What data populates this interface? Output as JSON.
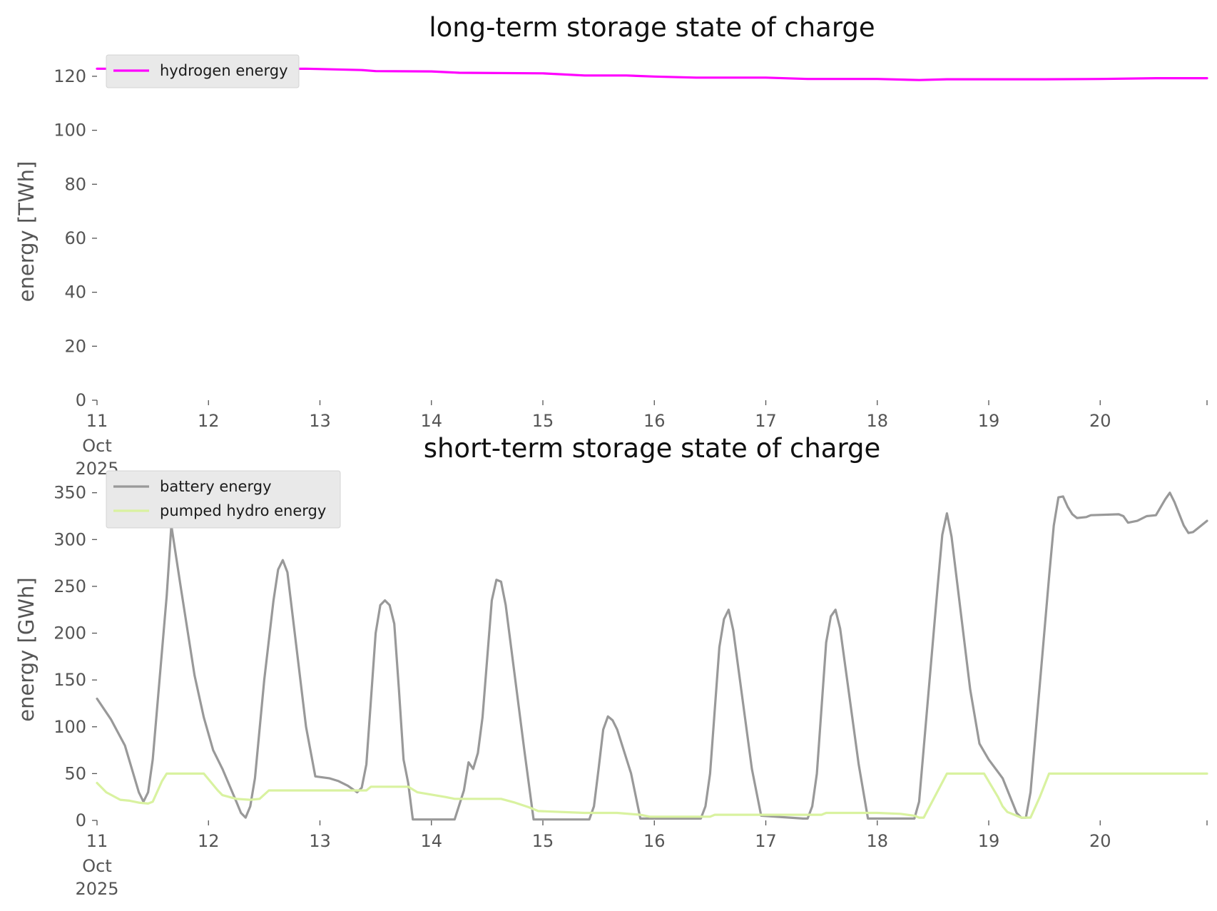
{
  "chart_data": [
    {
      "type": "line",
      "title": "long-term storage state of charge",
      "ylabel": "energy [TWh]",
      "xlabel": "",
      "ylim": [
        0,
        125
      ],
      "xlim": [
        "2025-10-11 00:00",
        "2025-10-20 23:00"
      ],
      "yticks": [
        0,
        20,
        40,
        60,
        80,
        100,
        120
      ],
      "xticks": [
        {
          "x": "2025-10-11",
          "label": "11",
          "sublabel": "Oct\n2025"
        },
        {
          "x": "2025-10-12",
          "label": "12"
        },
        {
          "x": "2025-10-13",
          "label": "13"
        },
        {
          "x": "2025-10-14",
          "label": "14"
        },
        {
          "x": "2025-10-15",
          "label": "15"
        },
        {
          "x": "2025-10-16",
          "label": "16"
        },
        {
          "x": "2025-10-17",
          "label": "17"
        },
        {
          "x": "2025-10-18",
          "label": "18"
        },
        {
          "x": "2025-10-19",
          "label": "19"
        },
        {
          "x": "2025-10-20",
          "label": "20"
        }
      ],
      "grid": false,
      "legend": "top-left",
      "series": [
        {
          "name": "hydrogen energy",
          "color": "#ff00ff",
          "points": [
            [
              "2025-10-11 00:00",
              122.8
            ],
            [
              "2025-10-12 00:00",
              122.7
            ],
            [
              "2025-10-12 21:00",
              122.8
            ],
            [
              "2025-10-13 09:00",
              122.3
            ],
            [
              "2025-10-13 12:00",
              121.9
            ],
            [
              "2025-10-14 00:00",
              121.8
            ],
            [
              "2025-10-14 06:00",
              121.3
            ],
            [
              "2025-10-15 00:00",
              121.1
            ],
            [
              "2025-10-15 09:00",
              120.3
            ],
            [
              "2025-10-15 18:00",
              120.3
            ],
            [
              "2025-10-16 00:00",
              119.9
            ],
            [
              "2025-10-16 09:00",
              119.5
            ],
            [
              "2025-10-17 00:00",
              119.5
            ],
            [
              "2025-10-17 09:00",
              119.0
            ],
            [
              "2025-10-18 00:00",
              119.0
            ],
            [
              "2025-10-18 09:00",
              118.6
            ],
            [
              "2025-10-18 15:00",
              118.9
            ],
            [
              "2025-10-19 12:00",
              118.9
            ],
            [
              "2025-10-20 00:00",
              119.0
            ],
            [
              "2025-10-20 12:00",
              119.3
            ],
            [
              "2025-10-20 23:00",
              119.3
            ]
          ]
        }
      ]
    },
    {
      "type": "line",
      "title": "short-term storage state of charge",
      "ylabel": "energy [GWh]",
      "xlabel": "",
      "ylim": [
        0,
        365
      ],
      "xlim": [
        "2025-10-11 00:00",
        "2025-10-20 23:00"
      ],
      "yticks": [
        0,
        50,
        100,
        150,
        200,
        250,
        300,
        350
      ],
      "xticks": [
        {
          "x": "2025-10-11",
          "label": "11",
          "sublabel": "Oct\n2025"
        },
        {
          "x": "2025-10-12",
          "label": "12"
        },
        {
          "x": "2025-10-13",
          "label": "13"
        },
        {
          "x": "2025-10-14",
          "label": "14"
        },
        {
          "x": "2025-10-15",
          "label": "15"
        },
        {
          "x": "2025-10-16",
          "label": "16"
        },
        {
          "x": "2025-10-17",
          "label": "17"
        },
        {
          "x": "2025-10-18",
          "label": "18"
        },
        {
          "x": "2025-10-19",
          "label": "19"
        },
        {
          "x": "2025-10-20",
          "label": "20"
        }
      ],
      "grid": false,
      "legend": "top-left",
      "series": [
        {
          "name": "battery energy",
          "color": "#999999",
          "points": [
            [
              "2025-10-11 00:00",
              130
            ],
            [
              "2025-10-11 03:00",
              108
            ],
            [
              "2025-10-11 06:00",
              80
            ],
            [
              "2025-10-11 09:00",
              30
            ],
            [
              "2025-10-11 10:00",
              20
            ],
            [
              "2025-10-11 11:00",
              30
            ],
            [
              "2025-10-11 12:00",
              65
            ],
            [
              "2025-10-11 15:00",
              240
            ],
            [
              "2025-10-11 16:00",
              315
            ],
            [
              "2025-10-11 18:00",
              250
            ],
            [
              "2025-10-11 21:00",
              155
            ],
            [
              "2025-10-11 23:00",
              110
            ],
            [
              "2025-10-12 01:00",
              75
            ],
            [
              "2025-10-12 03:00",
              55
            ],
            [
              "2025-10-12 06:00",
              20
            ],
            [
              "2025-10-12 07:00",
              8
            ],
            [
              "2025-10-12 08:00",
              3
            ],
            [
              "2025-10-12 09:00",
              15
            ],
            [
              "2025-10-12 10:00",
              45
            ],
            [
              "2025-10-12 12:00",
              150
            ],
            [
              "2025-10-12 14:00",
              235
            ],
            [
              "2025-10-12 15:00",
              268
            ],
            [
              "2025-10-12 16:00",
              278
            ],
            [
              "2025-10-12 17:00",
              265
            ],
            [
              "2025-10-12 21:00",
              100
            ],
            [
              "2025-10-12 23:00",
              47
            ],
            [
              "2025-10-13 02:00",
              45
            ],
            [
              "2025-10-13 04:00",
              42
            ],
            [
              "2025-10-13 06:00",
              37
            ],
            [
              "2025-10-13 08:00",
              30
            ],
            [
              "2025-10-13 09:00",
              35
            ],
            [
              "2025-10-13 10:00",
              60
            ],
            [
              "2025-10-13 12:00",
              200
            ],
            [
              "2025-10-13 13:00",
              230
            ],
            [
              "2025-10-13 14:00",
              235
            ],
            [
              "2025-10-13 15:00",
              230
            ],
            [
              "2025-10-13 16:00",
              210
            ],
            [
              "2025-10-13 17:00",
              140
            ],
            [
              "2025-10-13 18:00",
              65
            ],
            [
              "2025-10-13 19:00",
              40
            ],
            [
              "2025-10-13 20:00",
              1
            ],
            [
              "2025-10-14 05:00",
              1
            ],
            [
              "2025-10-14 07:00",
              32
            ],
            [
              "2025-10-14 08:00",
              62
            ],
            [
              "2025-10-14 09:00",
              55
            ],
            [
              "2025-10-14 10:00",
              72
            ],
            [
              "2025-10-14 11:00",
              110
            ],
            [
              "2025-10-14 13:00",
              235
            ],
            [
              "2025-10-14 14:00",
              257
            ],
            [
              "2025-10-14 15:00",
              255
            ],
            [
              "2025-10-14 16:00",
              230
            ],
            [
              "2025-10-14 20:00",
              75
            ],
            [
              "2025-10-14 22:00",
              1
            ],
            [
              "2025-10-15 10:00",
              1
            ],
            [
              "2025-10-15 11:00",
              15
            ],
            [
              "2025-10-15 12:00",
              55
            ],
            [
              "2025-10-15 13:00",
              97
            ],
            [
              "2025-10-15 14:00",
              111
            ],
            [
              "2025-10-15 15:00",
              107
            ],
            [
              "2025-10-15 16:00",
              97
            ],
            [
              "2025-10-15 19:00",
              50
            ],
            [
              "2025-10-15 21:00",
              2
            ],
            [
              "2025-10-16 10:00",
              2
            ],
            [
              "2025-10-16 11:00",
              15
            ],
            [
              "2025-10-16 12:00",
              50
            ],
            [
              "2025-10-16 14:00",
              185
            ],
            [
              "2025-10-16 15:00",
              215
            ],
            [
              "2025-10-16 16:00",
              225
            ],
            [
              "2025-10-16 17:00",
              203
            ],
            [
              "2025-10-16 21:00",
              55
            ],
            [
              "2025-10-16 23:00",
              5
            ],
            [
              "2025-10-17 08:00",
              2
            ],
            [
              "2025-10-17 09:00",
              2
            ],
            [
              "2025-10-17 10:00",
              15
            ],
            [
              "2025-10-17 11:00",
              50
            ],
            [
              "2025-10-17 13:00",
              190
            ],
            [
              "2025-10-17 14:00",
              218
            ],
            [
              "2025-10-17 15:00",
              225
            ],
            [
              "2025-10-17 16:00",
              205
            ],
            [
              "2025-10-17 20:00",
              60
            ],
            [
              "2025-10-17 22:00",
              2
            ],
            [
              "2025-10-18 08:00",
              2
            ],
            [
              "2025-10-18 09:00",
              20
            ],
            [
              "2025-10-18 13:00",
              250
            ],
            [
              "2025-10-18 14:00",
              305
            ],
            [
              "2025-10-18 15:00",
              328
            ],
            [
              "2025-10-18 16:00",
              303
            ],
            [
              "2025-10-18 20:00",
              140
            ],
            [
              "2025-10-18 22:00",
              82
            ],
            [
              "2025-10-19 00:00",
              65
            ],
            [
              "2025-10-19 03:00",
              45
            ],
            [
              "2025-10-19 06:00",
              8
            ],
            [
              "2025-10-19 07:00",
              3
            ],
            [
              "2025-10-19 08:00",
              3
            ],
            [
              "2025-10-19 09:00",
              30
            ],
            [
              "2025-10-19 13:00",
              260
            ],
            [
              "2025-10-19 14:00",
              315
            ],
            [
              "2025-10-19 15:00",
              345
            ],
            [
              "2025-10-19 16:00",
              346
            ],
            [
              "2025-10-19 17:00",
              335
            ],
            [
              "2025-10-19 18:00",
              327
            ],
            [
              "2025-10-19 19:00",
              323
            ],
            [
              "2025-10-19 21:00",
              324
            ],
            [
              "2025-10-19 22:00",
              326
            ],
            [
              "2025-10-20 04:00",
              327
            ],
            [
              "2025-10-20 05:00",
              325
            ],
            [
              "2025-10-20 06:00",
              318
            ],
            [
              "2025-10-20 08:00",
              320
            ],
            [
              "2025-10-20 10:00",
              325
            ],
            [
              "2025-10-20 12:00",
              326
            ],
            [
              "2025-10-20 14:00",
              343
            ],
            [
              "2025-10-20 15:00",
              350
            ],
            [
              "2025-10-20 16:00",
              340
            ],
            [
              "2025-10-20 18:00",
              315
            ],
            [
              "2025-10-20 19:00",
              307
            ],
            [
              "2025-10-20 20:00",
              308
            ],
            [
              "2025-10-20 21:00",
              312
            ],
            [
              "2025-10-20 23:00",
              320
            ]
          ]
        },
        {
          "name": "pumped hydro energy",
          "color": "#d9f2a0",
          "points": [
            [
              "2025-10-11 00:00",
              40
            ],
            [
              "2025-10-11 02:00",
              30
            ],
            [
              "2025-10-11 05:00",
              22
            ],
            [
              "2025-10-11 07:00",
              21
            ],
            [
              "2025-10-11 09:00",
              19
            ],
            [
              "2025-10-11 11:00",
              18
            ],
            [
              "2025-10-11 12:00",
              20
            ],
            [
              "2025-10-11 14:00",
              42
            ],
            [
              "2025-10-11 15:00",
              50
            ],
            [
              "2025-10-11 23:00",
              50
            ],
            [
              "2025-10-12 02:00",
              32
            ],
            [
              "2025-10-12 03:00",
              27
            ],
            [
              "2025-10-12 06:00",
              23
            ],
            [
              "2025-10-12 09:00",
              22
            ],
            [
              "2025-10-12 11:00",
              23
            ],
            [
              "2025-10-12 13:00",
              32
            ],
            [
              "2025-10-13 00:00",
              32
            ],
            [
              "2025-10-13 10:00",
              32
            ],
            [
              "2025-10-13 11:00",
              36
            ],
            [
              "2025-10-13 19:00",
              36
            ],
            [
              "2025-10-13 21:00",
              30
            ],
            [
              "2025-10-14 03:00",
              25
            ],
            [
              "2025-10-14 05:00",
              23
            ],
            [
              "2025-10-14 15:00",
              23
            ],
            [
              "2025-10-14 18:00",
              19
            ],
            [
              "2025-10-14 21:00",
              14
            ],
            [
              "2025-10-14 23:00",
              10
            ],
            [
              "2025-10-15 09:00",
              8
            ],
            [
              "2025-10-15 16:00",
              8
            ],
            [
              "2025-10-15 21:00",
              6
            ],
            [
              "2025-10-15 23:00",
              4
            ],
            [
              "2025-10-16 11:00",
              4
            ],
            [
              "2025-10-16 12:00",
              4
            ],
            [
              "2025-10-16 13:00",
              6
            ],
            [
              "2025-10-17 11:00",
              6
            ],
            [
              "2025-10-17 12:00",
              6
            ],
            [
              "2025-10-17 13:00",
              8
            ],
            [
              "2025-10-18 00:00",
              8
            ],
            [
              "2025-10-18 05:00",
              7
            ],
            [
              "2025-10-18 08:00",
              5
            ],
            [
              "2025-10-18 09:00",
              3
            ],
            [
              "2025-10-18 10:00",
              3
            ],
            [
              "2025-10-18 15:00",
              50
            ],
            [
              "2025-10-18 23:00",
              50
            ],
            [
              "2025-10-19 02:00",
              25
            ],
            [
              "2025-10-19 03:00",
              15
            ],
            [
              "2025-10-19 04:00",
              9
            ],
            [
              "2025-10-19 06:00",
              5
            ],
            [
              "2025-10-19 07:00",
              3
            ],
            [
              "2025-10-19 09:00",
              3
            ],
            [
              "2025-10-19 11:00",
              25
            ],
            [
              "2025-10-19 13:00",
              50
            ],
            [
              "2025-10-20 23:00",
              50
            ]
          ]
        }
      ]
    }
  ]
}
